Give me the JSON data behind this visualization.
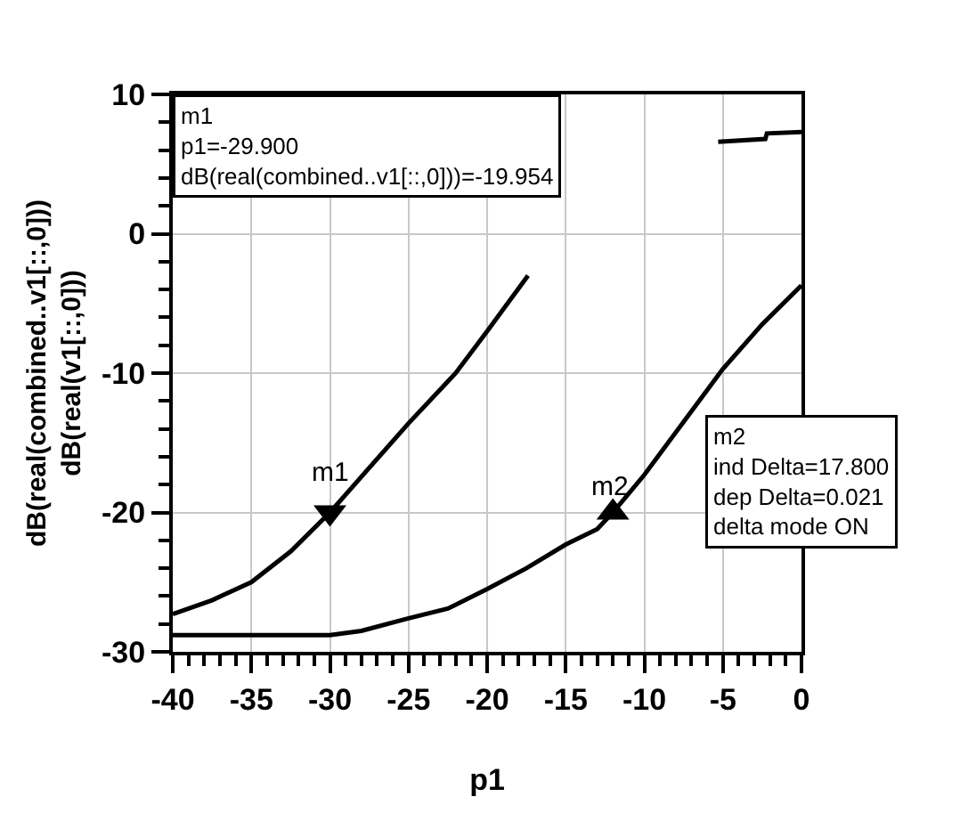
{
  "chart_data": {
    "type": "line",
    "xlabel": "p1",
    "ylabel": "dB(real(combined..v1[::,0]))\ndB(real(v1[::,0]))",
    "series": [
      {
        "color": "#000000",
        "x": [
          -40,
          -37.5,
          -35,
          -32.5,
          -30,
          -27.5,
          -25,
          -22,
          -20,
          -17.4,
          -16,
          -5.3,
          -2.3,
          -2.2,
          0
        ],
        "values": [
          -27.3,
          -26.3,
          -25,
          -22.8,
          -20,
          -16.8,
          -13.6,
          -10,
          -7,
          -3,
          null,
          6.6,
          6.8,
          7.2,
          7.3
        ]
      },
      {
        "color": "#000000",
        "x": [
          -40,
          -30,
          -28,
          -25,
          -22.5,
          -20,
          -17.5,
          -15,
          -13,
          -12,
          -10,
          -7.5,
          -5,
          -2.5,
          0
        ],
        "values": [
          -28.8,
          -28.8,
          -28.5,
          -27.6,
          -26.9,
          -25.5,
          -24,
          -22.3,
          -21.2,
          -20,
          -17.3,
          -13.5,
          -9.7,
          -6.5,
          -3.7
        ]
      }
    ],
    "xlim": [
      -40,
      0
    ],
    "ylim": [
      -30,
      10
    ],
    "xticks": [
      -40,
      -35,
      -30,
      -25,
      -20,
      -15,
      -10,
      -5,
      0,
      {
        "value": -39,
        "label": null
      },
      {
        "value": -38,
        "label": null
      },
      {
        "value": -37,
        "label": null
      },
      {
        "value": -36,
        "label": null
      },
      {
        "value": -34,
        "label": null
      },
      {
        "value": -33,
        "label": null
      },
      {
        "value": -32,
        "label": null
      },
      {
        "value": -31,
        "label": null
      },
      {
        "value": -29,
        "label": null
      },
      {
        "value": -28,
        "label": null
      },
      {
        "value": -27,
        "label": null
      },
      {
        "value": -26,
        "label": null
      },
      {
        "value": -24,
        "label": null
      },
      {
        "value": -23,
        "label": null
      },
      {
        "value": -22,
        "label": null
      },
      {
        "value": -21,
        "label": null
      },
      {
        "value": -19,
        "label": null
      },
      {
        "value": -18,
        "label": null
      },
      {
        "value": -17,
        "label": null
      },
      {
        "value": -16,
        "label": null
      },
      {
        "value": -14,
        "label": null
      },
      {
        "value": -13,
        "label": null
      },
      {
        "value": -12,
        "label": null
      },
      {
        "value": -11,
        "label": null
      },
      {
        "value": -9,
        "label": null
      },
      {
        "value": -8,
        "label": null
      },
      {
        "value": -7,
        "label": null
      },
      {
        "value": -6,
        "label": null
      },
      {
        "value": -4,
        "label": null
      },
      {
        "value": -3,
        "label": null
      },
      {
        "value": -2,
        "label": null
      },
      {
        "value": -1,
        "label": null
      }
    ],
    "yticks": [
      -30,
      -20,
      -10,
      0,
      10,
      {
        "value": -28,
        "label": null
      },
      {
        "value": -26,
        "label": null
      },
      {
        "value": -24,
        "label": null
      },
      {
        "value": -22,
        "label": null
      },
      {
        "value": -18,
        "label": null
      },
      {
        "value": -16,
        "label": null
      },
      {
        "value": -14,
        "label": null
      },
      {
        "value": -12,
        "label": null
      },
      {
        "value": -8,
        "label": null
      },
      {
        "value": -6,
        "label": null
      },
      {
        "value": -4,
        "label": null
      },
      {
        "value": -2,
        "label": null
      },
      {
        "value": 2,
        "label": null
      },
      {
        "value": 4,
        "label": null
      },
      {
        "value": 6,
        "label": null
      },
      {
        "value": 8,
        "label": null
      }
    ],
    "grid": true,
    "marker": "none",
    "line_style": "solid",
    "annotations": [
      {
        "text": "m1",
        "x": -30,
        "y": -20
      },
      {
        "text": "m2",
        "x": -12,
        "y": -20
      },
      "m1\np1=-29.900\ndB(real(combined..v1[::,0]))=-19.954",
      "m2\nind Delta=17.800\ndep Delta=0.021\ndelta mode ON"
    ]
  }
}
